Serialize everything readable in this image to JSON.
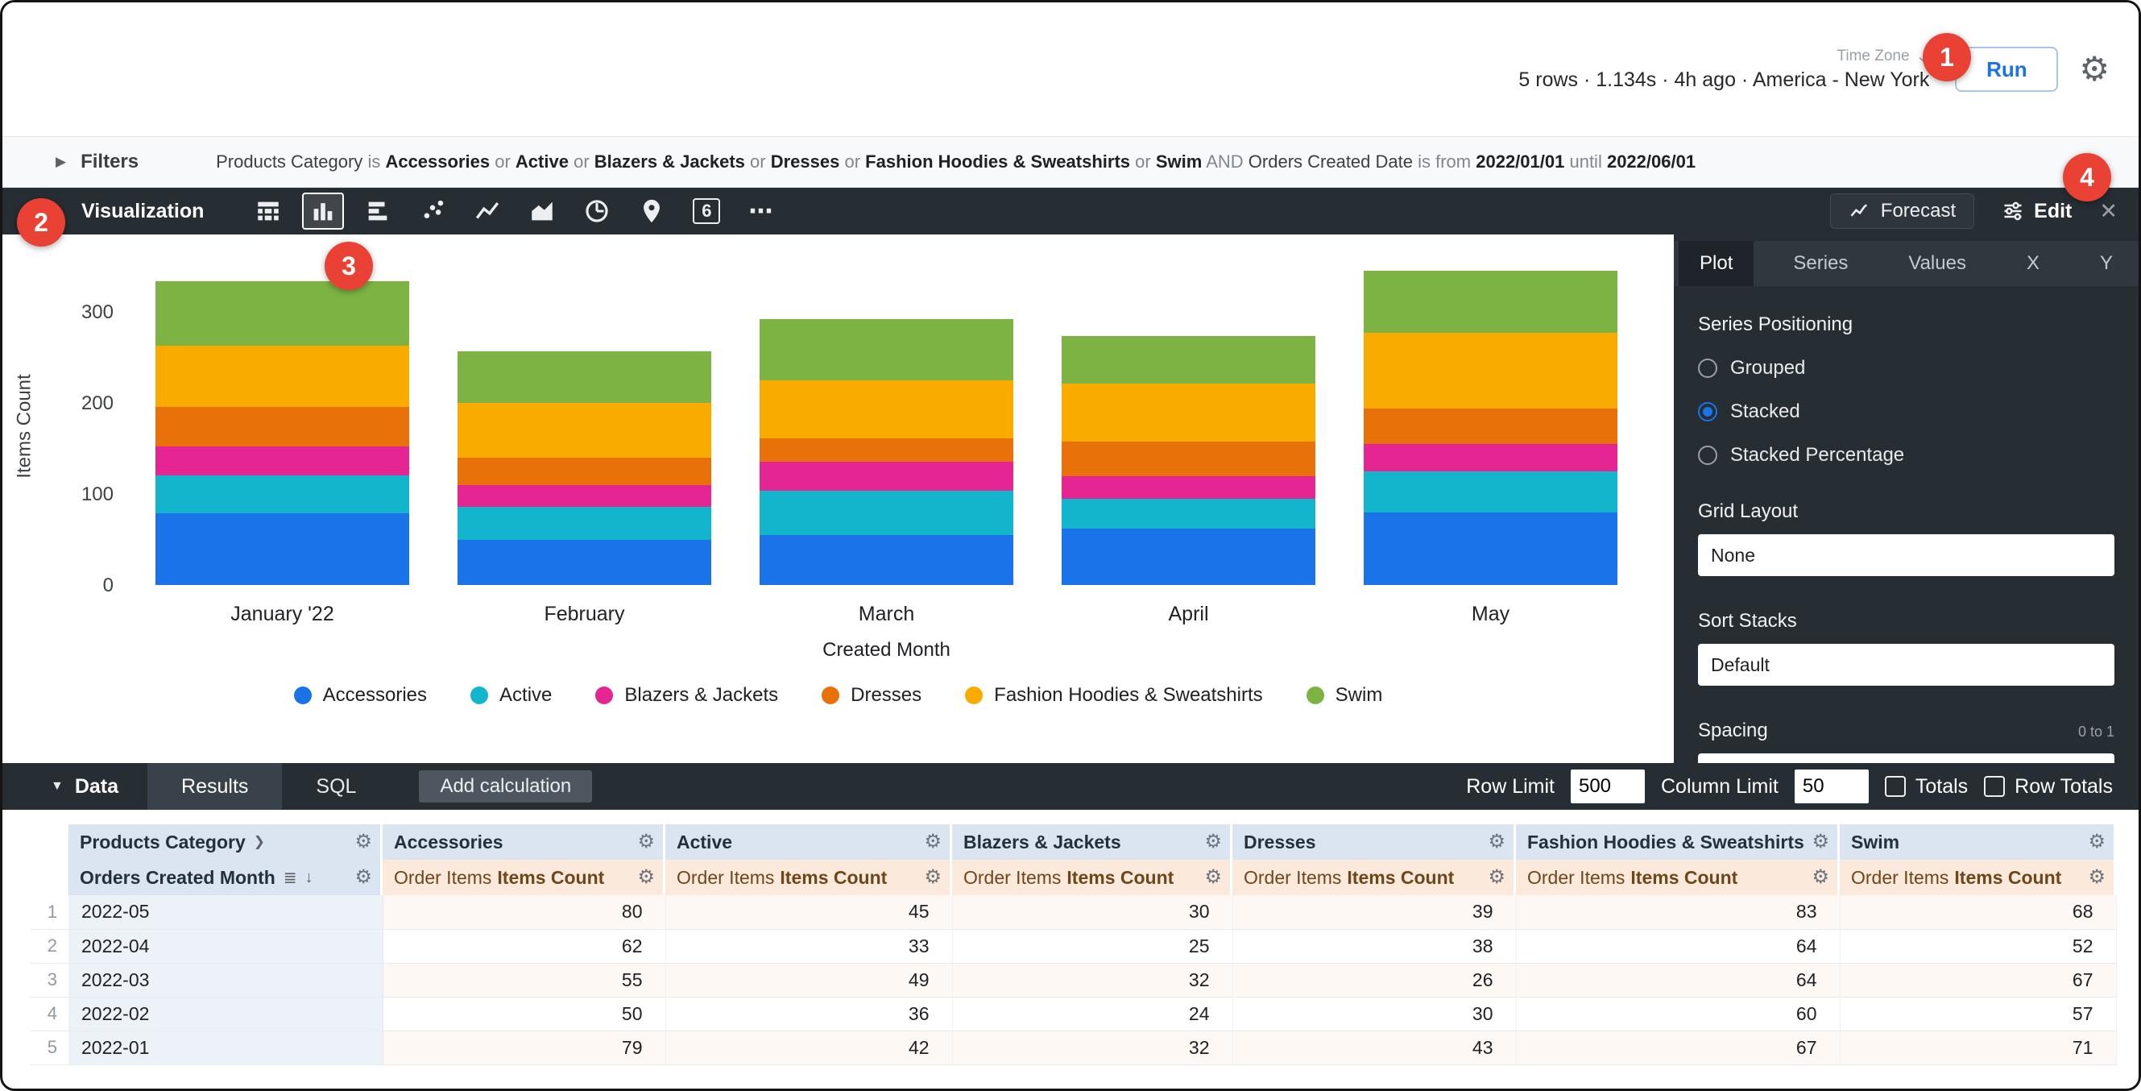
{
  "header": {
    "stats": "5 rows · 1.134s · 4h ago · America - New York",
    "time_zone_label": "Time Zone",
    "run_label": "Run"
  },
  "icons": {
    "chevron_down": "⌄",
    "gear": "⚙",
    "close": "✕",
    "triangle_right": "▶",
    "triangle_down": "▼",
    "sort_desc": "↓",
    "list": "≣",
    "chevron_right": "❯",
    "more": "⋯",
    "single_value": "6"
  },
  "filters": {
    "title": "Filters",
    "segments": [
      {
        "kind": "field",
        "text": "Products Category"
      },
      {
        "kind": "op",
        "text": "is"
      },
      {
        "kind": "value",
        "text": "Accessories"
      },
      {
        "kind": "op",
        "text": "or"
      },
      {
        "kind": "value",
        "text": "Active"
      },
      {
        "kind": "op",
        "text": "or"
      },
      {
        "kind": "value",
        "text": "Blazers & Jackets"
      },
      {
        "kind": "op",
        "text": "or"
      },
      {
        "kind": "value",
        "text": "Dresses"
      },
      {
        "kind": "op",
        "text": "or"
      },
      {
        "kind": "value",
        "text": "Fashion Hoodies & Sweatshirts"
      },
      {
        "kind": "op",
        "text": "or"
      },
      {
        "kind": "value",
        "text": "Swim"
      },
      {
        "kind": "op",
        "text": "AND"
      },
      {
        "kind": "field",
        "text": "Orders Created Date"
      },
      {
        "kind": "op",
        "text": "is from"
      },
      {
        "kind": "value",
        "text": "2022/01/01"
      },
      {
        "kind": "op",
        "text": "until"
      },
      {
        "kind": "value",
        "text": "2022/06/01"
      }
    ]
  },
  "viz_toolbar": {
    "title": "Visualization",
    "icons": [
      {
        "name": "table-viz-icon",
        "selected": false
      },
      {
        "name": "column-chart-icon",
        "selected": true
      },
      {
        "name": "bar-chart-icon",
        "selected": false
      },
      {
        "name": "scatter-chart-icon",
        "selected": false
      },
      {
        "name": "line-chart-icon",
        "selected": false
      },
      {
        "name": "area-chart-icon",
        "selected": false
      },
      {
        "name": "pie-chart-icon",
        "selected": false
      },
      {
        "name": "map-chart-icon",
        "selected": false
      },
      {
        "name": "single-value-icon",
        "selected": false,
        "glyph": "6"
      },
      {
        "name": "more-viz-icon",
        "selected": false,
        "glyph": "⋯"
      }
    ]
  },
  "edit_panel": {
    "forecast_label": "Forecast",
    "edit_label": "Edit",
    "tabs": [
      "Plot",
      "Series",
      "Values",
      "X",
      "Y"
    ],
    "active_tab": "Plot",
    "series_positioning": {
      "label": "Series Positioning",
      "options": [
        "Grouped",
        "Stacked",
        "Stacked Percentage"
      ],
      "selected": "Stacked"
    },
    "grid_layout": {
      "label": "Grid Layout",
      "value": "None"
    },
    "sort_stacks": {
      "label": "Sort Stacks",
      "value": "Default"
    },
    "spacing": {
      "label": "Spacing",
      "hint": "0 to 1"
    }
  },
  "chart_data": {
    "type": "bar",
    "stacked": true,
    "title": "",
    "xlabel": "Created Month",
    "ylabel": "Items Count",
    "ylim": [
      0,
      350
    ],
    "yticks": [
      0,
      100,
      200,
      300
    ],
    "grid": false,
    "legend_position": "bottom",
    "categories": [
      "January '22",
      "February",
      "March",
      "April",
      "May"
    ],
    "series": [
      {
        "name": "Accessories",
        "color": "#1A73E8",
        "values": [
          79,
          50,
          55,
          62,
          80
        ]
      },
      {
        "name": "Active",
        "color": "#12B5CB",
        "values": [
          42,
          36,
          49,
          33,
          45
        ]
      },
      {
        "name": "Blazers & Jackets",
        "color": "#E52592",
        "values": [
          32,
          24,
          32,
          25,
          30
        ]
      },
      {
        "name": "Dresses",
        "color": "#E8710A",
        "values": [
          43,
          30,
          26,
          38,
          39
        ]
      },
      {
        "name": "Fashion Hoodies & Sweatshirts",
        "color": "#F9AB00",
        "values": [
          67,
          60,
          64,
          64,
          83
        ]
      },
      {
        "name": "Swim",
        "color": "#7CB342",
        "values": [
          71,
          57,
          67,
          52,
          68
        ]
      }
    ]
  },
  "data_bar": {
    "title": "Data",
    "tabs": [
      "Results",
      "SQL"
    ],
    "active_tab": "Results",
    "add_calculation_label": "Add calculation",
    "row_limit_label": "Row Limit",
    "row_limit_value": "500",
    "column_limit_label": "Column Limit",
    "column_limit_value": "50",
    "totals_label": "Totals",
    "row_totals_label": "Row Totals"
  },
  "table": {
    "dimension_header": "Products Category",
    "dimension_subheader": "Orders Created Month",
    "columns": [
      "Accessories",
      "Active",
      "Blazers & Jackets",
      "Dresses",
      "Fashion Hoodies & Sweatshirts",
      "Swim"
    ],
    "measure_prefix": "Order Items",
    "measure_name": "Items Count",
    "rows": [
      {
        "n": "1",
        "month": "2022-05",
        "values": [
          80,
          45,
          30,
          39,
          83,
          68
        ]
      },
      {
        "n": "2",
        "month": "2022-04",
        "values": [
          62,
          33,
          25,
          38,
          64,
          52
        ]
      },
      {
        "n": "3",
        "month": "2022-03",
        "values": [
          55,
          49,
          32,
          26,
          64,
          67
        ]
      },
      {
        "n": "4",
        "month": "2022-02",
        "values": [
          50,
          36,
          24,
          30,
          60,
          57
        ]
      },
      {
        "n": "5",
        "month": "2022-01",
        "values": [
          79,
          42,
          32,
          43,
          67,
          71
        ]
      }
    ]
  },
  "annotations": {
    "badges": [
      "1",
      "2",
      "3",
      "4"
    ],
    "badge_color": "#E94235"
  }
}
